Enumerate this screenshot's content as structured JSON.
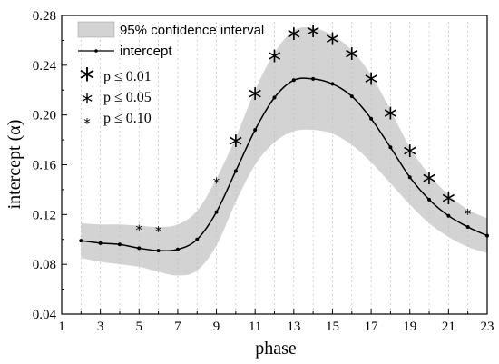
{
  "chart_data": {
    "type": "line",
    "xlabel": "phase",
    "ylabel": "intercept (α)",
    "xlim": [
      1,
      23
    ],
    "ylim": [
      0.04,
      0.28
    ],
    "x_ticks": [
      "1",
      "3",
      "5",
      "7",
      "9",
      "11",
      "13",
      "15",
      "17",
      "19",
      "21",
      "23"
    ],
    "y_ticks": [
      "0.04",
      "0.08",
      "0.12",
      "0.16",
      "0.20",
      "0.24",
      "0.28"
    ],
    "grid": "vertical dashed lines at each phase",
    "legend_position": "top-left",
    "series": [
      {
        "name": "intercept",
        "x": [
          2,
          3,
          4,
          5,
          6,
          7,
          8,
          9,
          10,
          11,
          12,
          13,
          14,
          15,
          16,
          17,
          18,
          19,
          20,
          21,
          22,
          23
        ],
        "values": [
          0.099,
          0.097,
          0.096,
          0.093,
          0.091,
          0.092,
          0.1,
          0.122,
          0.155,
          0.188,
          0.214,
          0.228,
          0.229,
          0.225,
          0.215,
          0.197,
          0.174,
          0.15,
          0.132,
          0.119,
          0.11,
          0.103
        ]
      }
    ],
    "confidence_band": {
      "name": "95% confidence interval",
      "x": [
        2,
        3,
        4,
        5,
        6,
        7,
        8,
        9,
        10,
        11,
        12,
        13,
        14,
        15,
        16,
        17,
        18,
        19,
        20,
        21,
        22,
        23
      ],
      "lower": [
        0.085,
        0.082,
        0.08,
        0.078,
        0.074,
        0.071,
        0.075,
        0.095,
        0.13,
        0.16,
        0.178,
        0.187,
        0.188,
        0.185,
        0.176,
        0.162,
        0.145,
        0.128,
        0.113,
        0.102,
        0.094,
        0.089
      ],
      "upper": [
        0.113,
        0.112,
        0.112,
        0.111,
        0.11,
        0.112,
        0.123,
        0.149,
        0.182,
        0.22,
        0.25,
        0.268,
        0.27,
        0.264,
        0.252,
        0.232,
        0.204,
        0.174,
        0.152,
        0.136,
        0.124,
        0.117
      ]
    },
    "significance": [
      {
        "x": 5,
        "level": "p10"
      },
      {
        "x": 6,
        "level": "p10"
      },
      {
        "x": 9,
        "level": "p10"
      },
      {
        "x": 10,
        "level": "p01"
      },
      {
        "x": 11,
        "level": "p01"
      },
      {
        "x": 12,
        "level": "p01"
      },
      {
        "x": 13,
        "level": "p01"
      },
      {
        "x": 14,
        "level": "p01"
      },
      {
        "x": 15,
        "level": "p01"
      },
      {
        "x": 16,
        "level": "p01"
      },
      {
        "x": 17,
        "level": "p01"
      },
      {
        "x": 18,
        "level": "p01"
      },
      {
        "x": 19,
        "level": "p01"
      },
      {
        "x": 20,
        "level": "p01"
      },
      {
        "x": 21,
        "level": "p01"
      },
      {
        "x": 22,
        "level": "p10"
      }
    ],
    "legend": {
      "band_label": "95% confidence interval",
      "line_label": "intercept",
      "p01_label": "p ≤ 0.01",
      "p05_label": "p ≤ 0.05",
      "p10_label": "p ≤ 0.10"
    },
    "colors": {
      "band": "#d3d3d3",
      "line": "#000000",
      "grid": "#bfbfbf"
    }
  }
}
